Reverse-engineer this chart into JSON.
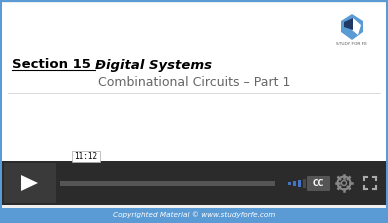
{
  "bg_color": "#f0f0f0",
  "border_color": "#5b9bd5",
  "section_prefix": "Section 15 – ",
  "section_bold": "Digital Systems",
  "subtitle_text": "Combinational Circuits – Part 1",
  "logo_text": "STUDY FOR FE",
  "video_bar_color": "#2b2b2b",
  "copyright_text": "Copyrighted Material © www.studyforfe.com",
  "copyright_bg": "#5b9bd5",
  "copyright_color": "#ffffff",
  "time_text": "11:12",
  "signal_color": "#4472c4",
  "cc_text": "CC"
}
